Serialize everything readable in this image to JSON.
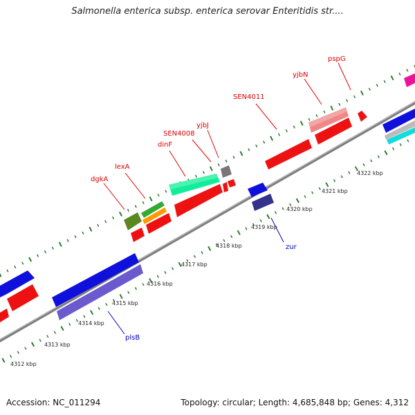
{
  "header": {
    "title": "Salmonella enterica subsp. enterica serovar Enteritidis str...."
  },
  "footer": {
    "accession": "Accession: NC_011294",
    "stats": "Topology: circular; Length: 4,685,848 bp; Genes: 4,312"
  },
  "map": {
    "ticks": [
      {
        "label": "4312 kbp"
      },
      {
        "label": "4313 kbp"
      },
      {
        "label": "4314 kbp"
      },
      {
        "label": "4315 kbp"
      },
      {
        "label": "4316 kbp"
      },
      {
        "label": "4317 kbp"
      },
      {
        "label": "4318 kbp"
      },
      {
        "label": "4319 kbp"
      },
      {
        "label": "4320 kbp"
      },
      {
        "label": "4321 kbp"
      },
      {
        "label": "4322 kbp"
      }
    ],
    "gene_labels": [
      {
        "text": "dgkA",
        "strand": "forward"
      },
      {
        "text": "lexA",
        "strand": "forward"
      },
      {
        "text": "dinF",
        "strand": "forward"
      },
      {
        "text": "SEN4008",
        "strand": "forward"
      },
      {
        "text": "yjbJ",
        "strand": "forward"
      },
      {
        "text": "SEN4011",
        "strand": "forward"
      },
      {
        "text": "yjbN",
        "strand": "forward"
      },
      {
        "text": "pspG",
        "strand": "forward"
      },
      {
        "text": "zur",
        "strand": "reverse"
      },
      {
        "text": "plsB",
        "strand": "reverse"
      }
    ],
    "colors": {
      "forward_label": "#dd0000",
      "reverse_label": "#0000bb",
      "backbone": "#888888",
      "tick_dots": "#2a7a2a"
    }
  }
}
